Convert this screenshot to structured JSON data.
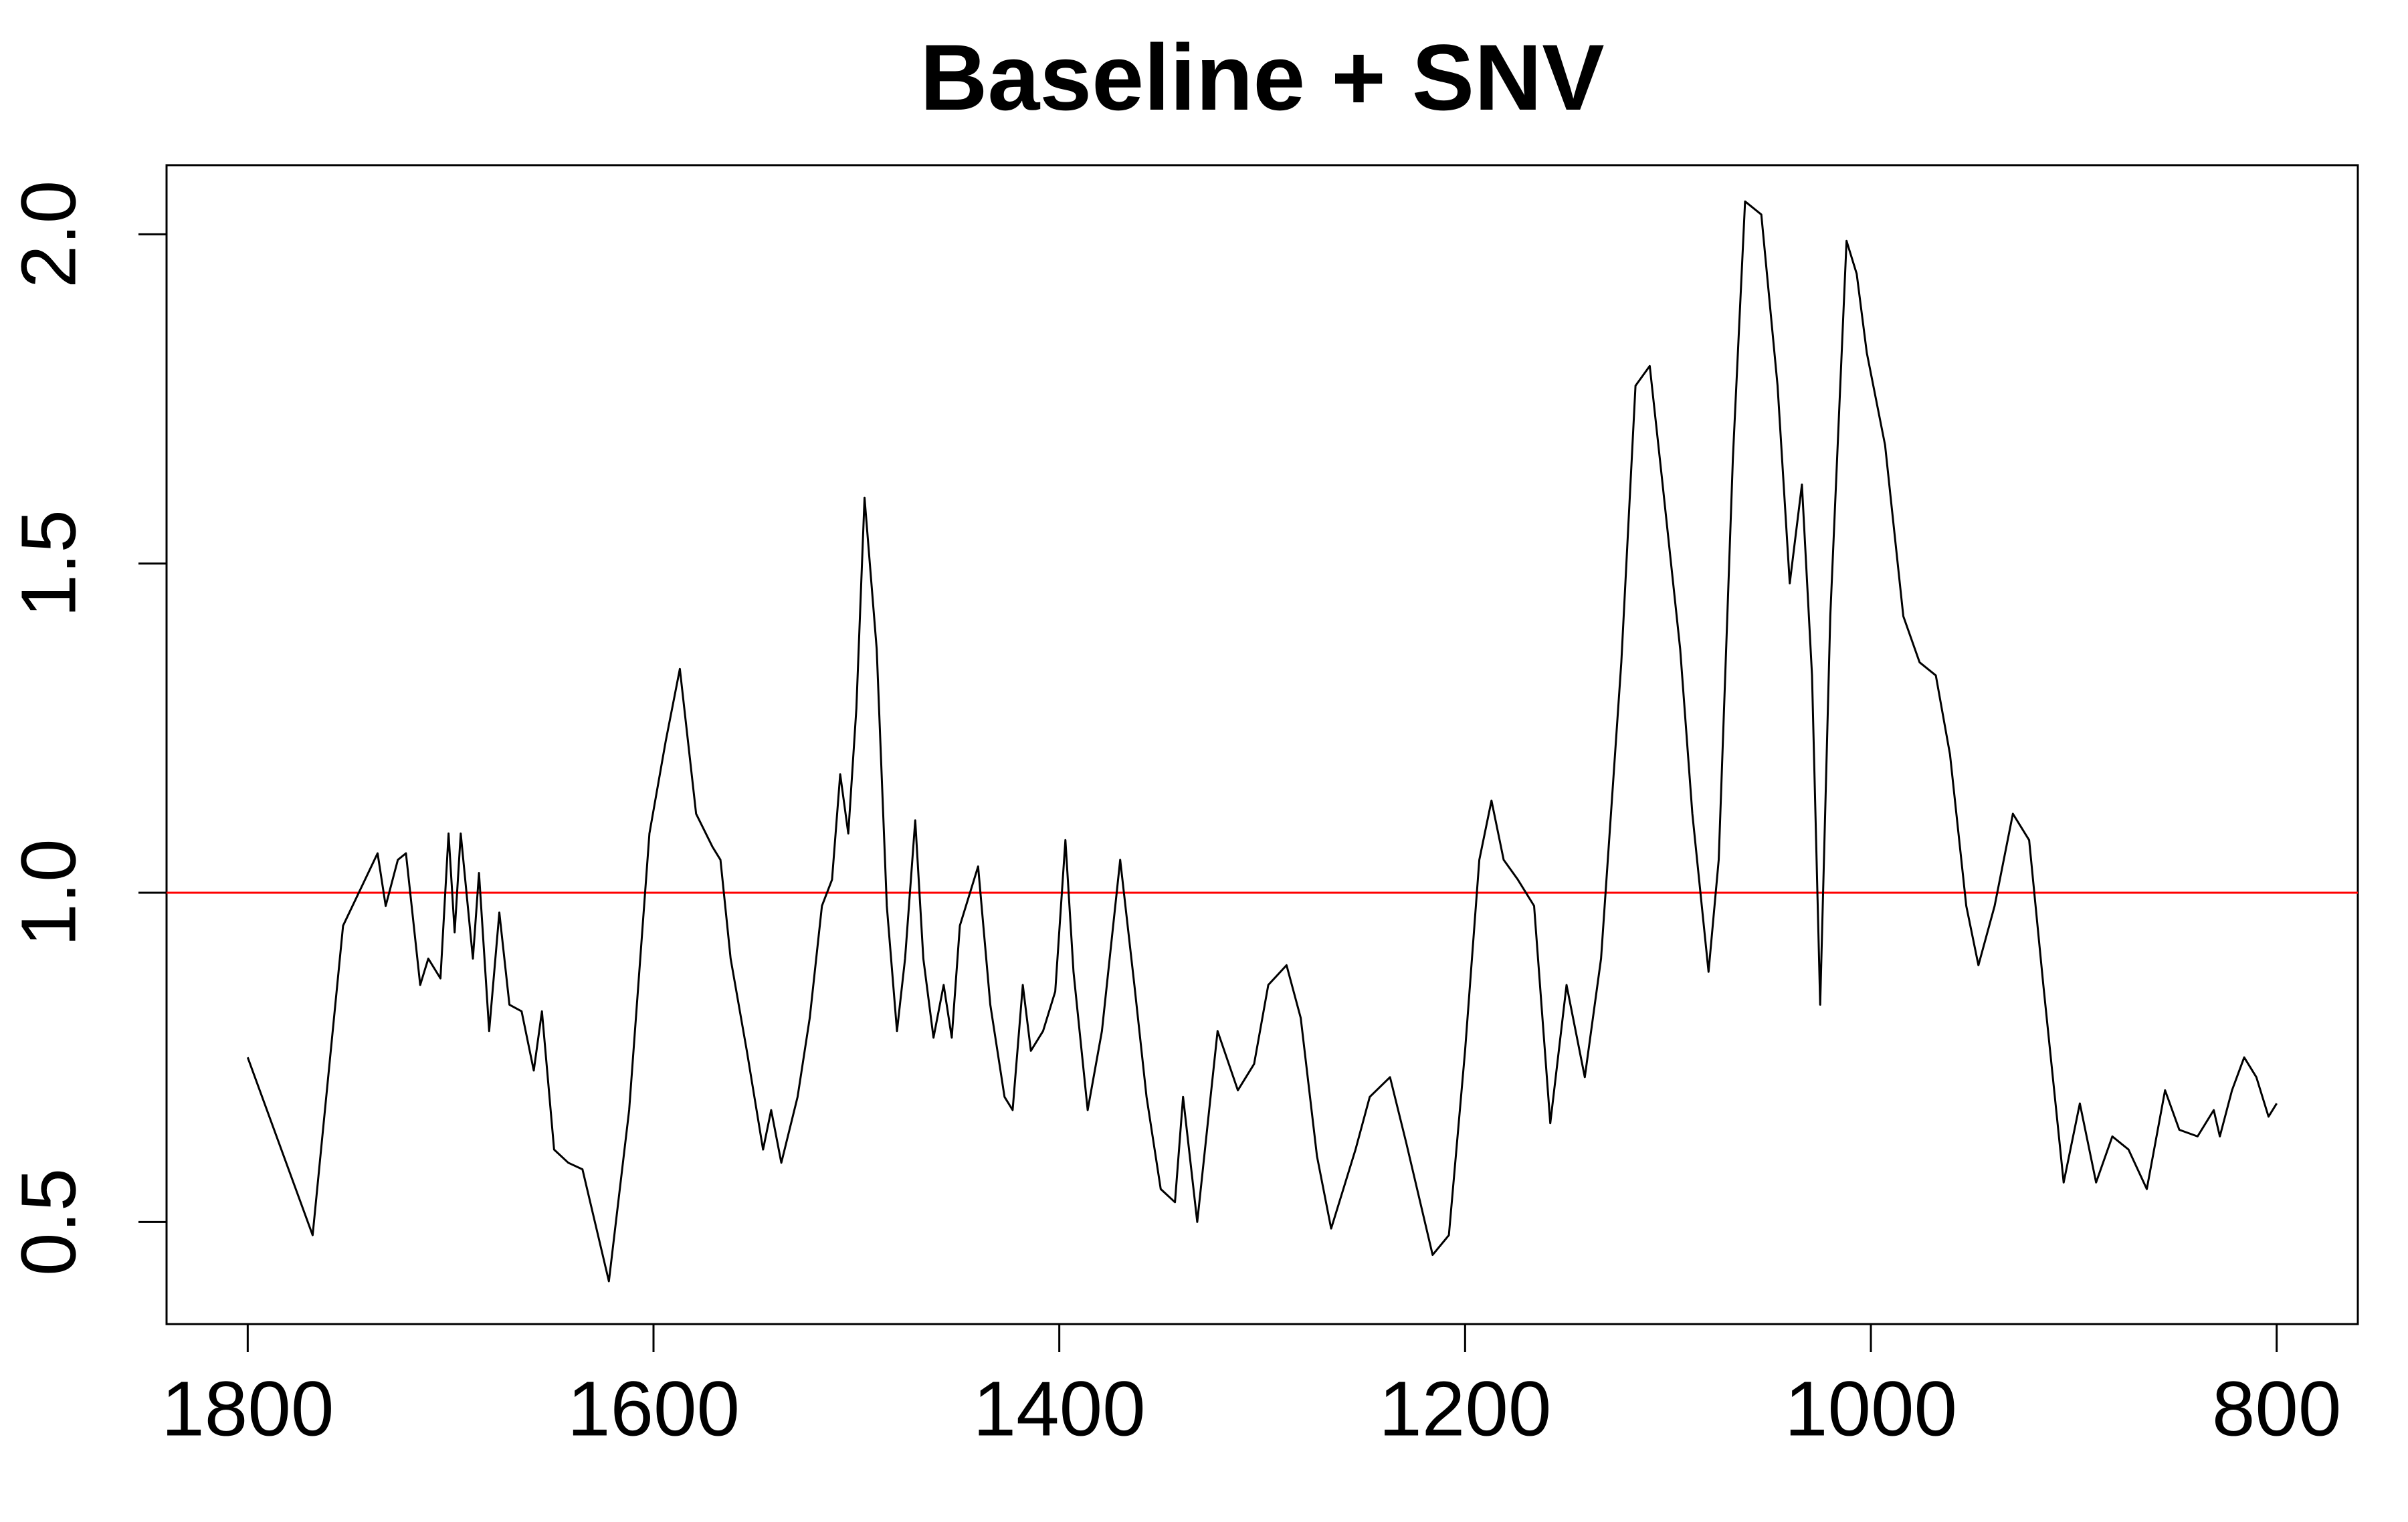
{
  "chart_data": {
    "type": "line",
    "title": "Baseline + SNV",
    "x": [
      1800,
      1768,
      1753,
      1736,
      1732,
      1726,
      1722,
      1715,
      1711,
      1705,
      1701,
      1698,
      1695,
      1689,
      1686,
      1681,
      1676,
      1671,
      1665,
      1659,
      1655,
      1649,
      1642,
      1635,
      1622,
      1612,
      1602,
      1594,
      1587,
      1579,
      1571,
      1567,
      1562,
      1554,
      1546,
      1542,
      1537,
      1529,
      1523,
      1517,
      1512,
      1508,
      1504,
      1500,
      1496,
      1490,
      1485,
      1480,
      1476,
      1471,
      1467,
      1462,
      1457,
      1453,
      1449,
      1440,
      1434,
      1427,
      1423,
      1418,
      1414,
      1408,
      1402,
      1397,
      1393,
      1386,
      1379,
      1370,
      1363,
      1357,
      1350,
      1343,
      1339,
      1332,
      1322,
      1312,
      1304,
      1297,
      1288,
      1281,
      1273,
      1266,
      1254,
      1247,
      1237,
      1229,
      1216,
      1208,
      1200,
      1193,
      1187,
      1181,
      1174,
      1166,
      1158,
      1150,
      1141,
      1133,
      1123,
      1116,
      1109,
      1103,
      1094,
      1088,
      1080,
      1075,
      1068,
      1062,
      1054,
      1046,
      1040,
      1034,
      1029,
      1025,
      1020,
      1012,
      1007,
      1002,
      993,
      984,
      976,
      968,
      961,
      953,
      947,
      939,
      930,
      922,
      915,
      905,
      897,
      889,
      881,
      873,
      864,
      855,
      848,
      839,
      831,
      828,
      822,
      816,
      810,
      804,
      800
    ],
    "values": [
      0.75,
      0.48,
      0.95,
      1.06,
      0.98,
      1.05,
      1.06,
      0.86,
      0.9,
      0.87,
      1.09,
      0.94,
      1.09,
      0.9,
      1.03,
      0.79,
      0.97,
      0.83,
      0.82,
      0.73,
      0.82,
      0.61,
      0.59,
      0.58,
      0.41,
      0.67,
      1.09,
      1.23,
      1.34,
      1.12,
      1.07,
      1.05,
      0.9,
      0.76,
      0.61,
      0.67,
      0.59,
      0.69,
      0.81,
      0.98,
      1.02,
      1.18,
      1.09,
      1.28,
      1.6,
      1.37,
      0.98,
      0.79,
      0.9,
      1.11,
      0.9,
      0.78,
      0.86,
      0.78,
      0.95,
      1.04,
      0.83,
      0.69,
      0.67,
      0.86,
      0.76,
      0.79,
      0.85,
      1.08,
      0.88,
      0.67,
      0.79,
      1.05,
      0.86,
      0.69,
      0.55,
      0.53,
      0.69,
      0.5,
      0.79,
      0.7,
      0.74,
      0.86,
      0.89,
      0.81,
      0.6,
      0.49,
      0.61,
      0.69,
      0.72,
      0.62,
      0.45,
      0.48,
      0.76,
      1.05,
      1.14,
      1.05,
      1.02,
      0.98,
      0.65,
      0.86,
      0.72,
      0.9,
      1.35,
      1.77,
      1.8,
      1.63,
      1.37,
      1.12,
      0.88,
      1.05,
      1.66,
      2.05,
      2.03,
      1.77,
      1.47,
      1.62,
      1.33,
      0.83,
      1.42,
      1.99,
      1.94,
      1.82,
      1.68,
      1.42,
      1.35,
      1.33,
      1.21,
      0.98,
      0.89,
      0.98,
      1.12,
      1.08,
      0.86,
      0.56,
      0.68,
      0.56,
      0.63,
      0.61,
      0.55,
      0.7,
      0.64,
      0.63,
      0.67,
      0.63,
      0.7,
      0.75,
      0.72,
      0.66,
      0.68
    ],
    "color": "#000000",
    "xlim": [
      1840,
      760
    ],
    "xticks": [
      1800,
      1600,
      1400,
      1200,
      1000,
      800
    ],
    "ylim": [
      0.345,
      2.105
    ],
    "yticks": [
      0.5,
      {
        "value": 1,
        "label": "1.0"
      },
      1.5,
      {
        "value": 2,
        "label": "2.0"
      }
    ],
    "hline": {
      "y": 1,
      "color": "#ff0000"
    }
  }
}
